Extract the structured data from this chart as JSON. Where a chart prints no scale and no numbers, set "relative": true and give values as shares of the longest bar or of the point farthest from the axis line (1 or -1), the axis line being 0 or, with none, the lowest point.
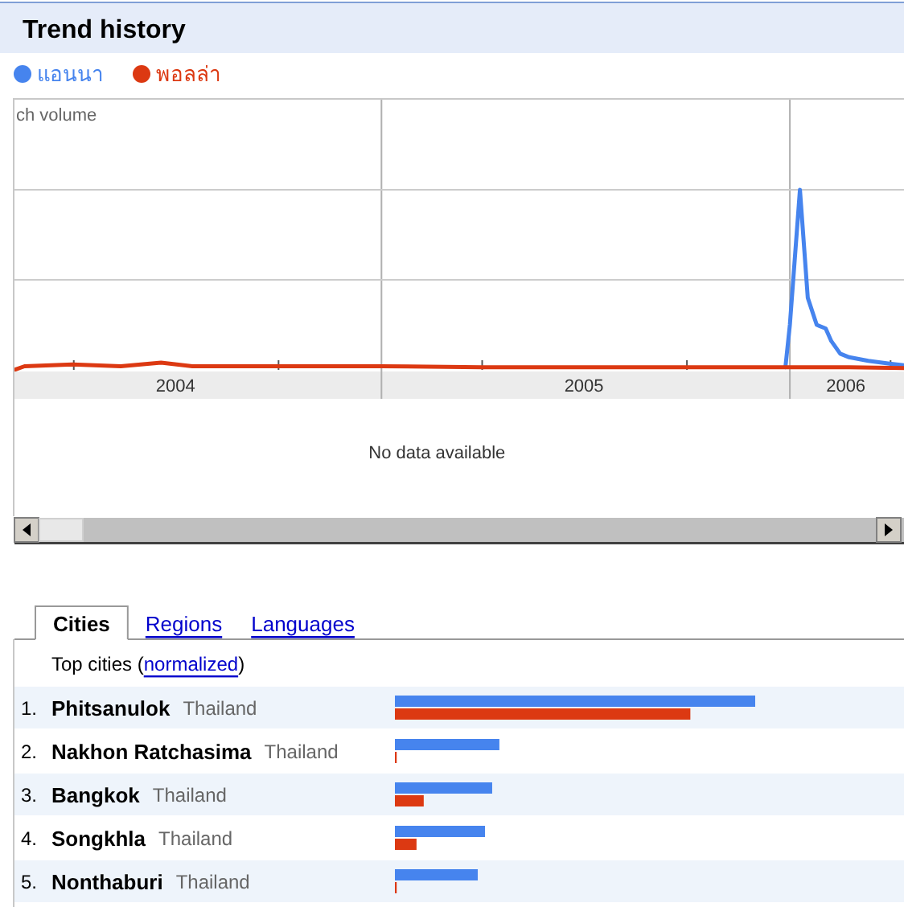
{
  "chart_data": [
    {
      "type": "line",
      "title": "Trend history",
      "ylabel": "ch volume",
      "relative": true,
      "legend": "top left",
      "xlim": [
        "2004-02-08",
        "2006-04-13"
      ],
      "xticks": [
        {
          "value": "2004-04-01",
          "label": null
        },
        {
          "value": "2004-07-01",
          "label": "2004"
        },
        {
          "value": "2004-10-01",
          "label": null
        },
        {
          "value": "2005-04-01",
          "label": null
        },
        {
          "value": "2005-07-01",
          "label": "2005"
        },
        {
          "value": "2005-10-01",
          "label": null
        },
        {
          "value": "2006-02-20",
          "label": "2006"
        },
        {
          "value": "2006-04-01",
          "label": null
        }
      ],
      "ref_lines": [
        {
          "axis": "x",
          "value": "2005-01-01",
          "color": "#b0b0b0"
        },
        {
          "axis": "x",
          "value": "2006-01-01",
          "color": "#b0b0b0"
        },
        {
          "axis": "y",
          "value": 0.5,
          "color": "#cccccc"
        },
        {
          "axis": "y",
          "value": 1,
          "color": "#cccccc"
        }
      ],
      "series": [
        {
          "name": "แอนนา",
          "color": "#4684ee",
          "x": [
            "2005-12-28",
            "2006-01-01",
            "2006-01-10",
            "2006-01-17",
            "2006-01-25",
            "2006-02-02",
            "2006-02-07",
            "2006-02-15",
            "2006-02-23",
            "2006-03-12",
            "2006-03-31",
            "2006-04-13"
          ],
          "values": [
            0.015,
            0.25,
            1,
            0.4,
            0.25,
            0.23,
            0.16,
            0.09,
            0.07,
            0.05,
            0.035,
            0.026
          ]
        },
        {
          "name": "พอลล่า",
          "color": "#dc3912",
          "x": [
            "2004-02-08",
            "2004-02-17",
            "2004-03-31",
            "2004-05-13",
            "2004-06-18",
            "2004-07-16",
            "2004-10-01",
            "2005-01-01",
            "2005-04-01",
            "2005-07-04",
            "2005-10-02",
            "2005-12-29",
            "2006-02-23",
            "2006-04-13"
          ],
          "values": [
            0,
            0.02,
            0.03,
            0.02,
            0.04,
            0.02,
            0.02,
            0.02,
            0.015,
            0.015,
            0.015,
            0.015,
            0.015,
            0.01
          ]
        }
      ],
      "annotations": [
        "No data available"
      ]
    },
    {
      "type": "bar",
      "orientation": "horizontal",
      "relative": true,
      "title": "Cities",
      "subtitle": "Top cities (normalized)",
      "categories": [
        "1. Phitsanulok Thailand",
        "2. Nakhon Ratchasima Thailand",
        "3. Bangkok Thailand",
        "4. Songkhla Thailand",
        "5. Nonthaburi Thailand"
      ],
      "series": [
        {
          "color": "#4684ee",
          "values": [
            1,
            0.29,
            0.27,
            0.25,
            0.23
          ]
        },
        {
          "color": "#dc3912",
          "values": [
            0.82,
            0.005,
            0.08,
            0.06,
            0.005
          ]
        }
      ],
      "annotations": [
        "Regions",
        "Languages"
      ]
    }
  ]
}
